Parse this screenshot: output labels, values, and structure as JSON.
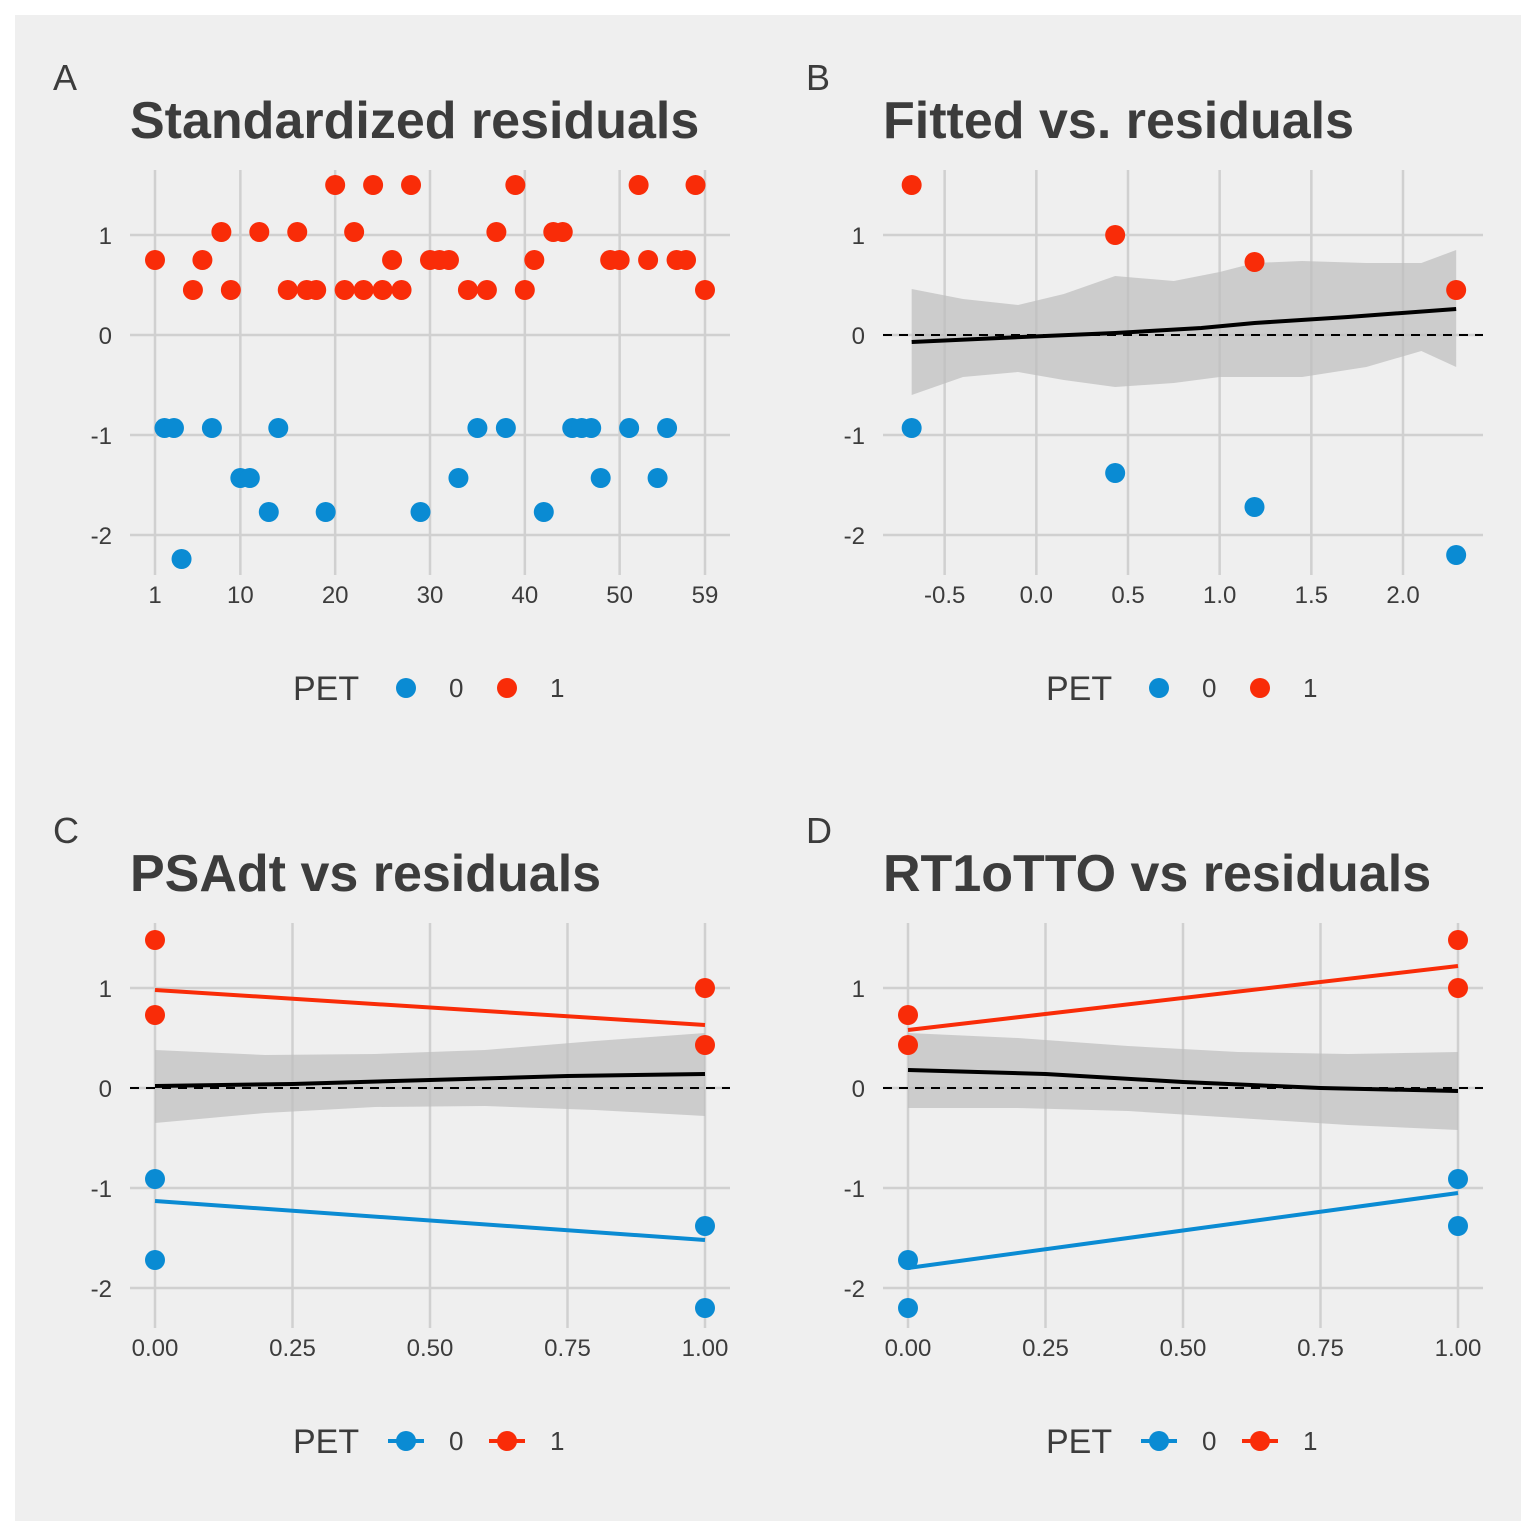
{
  "colors": {
    "pet0": "#0a8bd3",
    "pet1": "#f92c08",
    "smooth": "#000000",
    "ribbon": "#bdbdbd",
    "grid": "#d0d0d0",
    "text": "#3c3c3c",
    "background": "#efefef"
  },
  "legend": {
    "title": "PET",
    "labels": [
      "0",
      "1"
    ]
  },
  "chart_data": [
    {
      "tag": "A",
      "title": "Standardized residuals",
      "type": "scatter",
      "xlim": [
        1,
        59
      ],
      "ylim": [
        -2.25,
        1.5
      ],
      "x_ticks": [
        1,
        10,
        20,
        30,
        40,
        50,
        59
      ],
      "x_tick_labels": [
        "1",
        "10",
        "20",
        "30",
        "40",
        "50",
        "59"
      ],
      "y_ticks": [
        -2,
        -1,
        0,
        1
      ],
      "y_tick_labels": [
        "-2",
        "-1",
        "0",
        "1"
      ],
      "legend_style": "point",
      "series": [
        {
          "pet": "0",
          "points": [
            [
              2,
              -0.93
            ],
            [
              3,
              -0.93
            ],
            [
              3.8,
              -2.24
            ],
            [
              7,
              -0.93
            ],
            [
              10,
              -1.43
            ],
            [
              11,
              -1.43
            ],
            [
              13,
              -1.77
            ],
            [
              14,
              -0.93
            ],
            [
              19,
              -1.77
            ],
            [
              29,
              -1.77
            ],
            [
              33,
              -1.43
            ],
            [
              35,
              -0.93
            ],
            [
              38,
              -0.93
            ],
            [
              42,
              -1.77
            ],
            [
              45,
              -0.93
            ],
            [
              46,
              -0.93
            ],
            [
              47,
              -0.93
            ],
            [
              48,
              -1.43
            ],
            [
              51,
              -0.93
            ],
            [
              54,
              -1.43
            ],
            [
              55,
              -0.93
            ]
          ]
        },
        {
          "pet": "1",
          "points": [
            [
              1,
              0.75
            ],
            [
              5,
              0.45
            ],
            [
              6,
              0.75
            ],
            [
              8,
              1.03
            ],
            [
              9,
              0.45
            ],
            [
              12,
              1.03
            ],
            [
              15,
              0.45
            ],
            [
              16,
              1.03
            ],
            [
              17,
              0.45
            ],
            [
              18,
              0.45
            ],
            [
              20,
              1.5
            ],
            [
              21,
              0.45
            ],
            [
              22,
              1.03
            ],
            [
              23,
              0.45
            ],
            [
              24,
              1.5
            ],
            [
              25,
              0.45
            ],
            [
              26,
              0.75
            ],
            [
              27,
              0.45
            ],
            [
              28,
              1.5
            ],
            [
              30,
              0.75
            ],
            [
              31,
              0.75
            ],
            [
              32,
              0.75
            ],
            [
              34,
              0.45
            ],
            [
              36,
              0.45
            ],
            [
              37,
              1.03
            ],
            [
              39,
              1.5
            ],
            [
              40,
              0.45
            ],
            [
              41,
              0.75
            ],
            [
              43,
              1.03
            ],
            [
              44,
              1.03
            ],
            [
              49,
              0.75
            ],
            [
              50,
              0.75
            ],
            [
              52,
              1.5
            ],
            [
              53,
              0.75
            ],
            [
              56,
              0.75
            ],
            [
              57,
              0.75
            ],
            [
              58,
              1.5
            ],
            [
              59,
              0.45
            ]
          ]
        }
      ]
    },
    {
      "tag": "B",
      "title": "Fitted vs. residuals",
      "type": "scatter",
      "xlim": [
        -0.7,
        2.3
      ],
      "ylim": [
        -2.25,
        1.5
      ],
      "x_ticks": [
        -0.5,
        0,
        0.5,
        1,
        1.5,
        2
      ],
      "x_tick_labels": [
        "-0.5",
        "0.0",
        "0.5",
        "1.0",
        "1.5",
        "2.0"
      ],
      "y_ticks": [
        -2,
        -1,
        0,
        1
      ],
      "y_tick_labels": [
        "-2",
        "-1",
        "0",
        "1"
      ],
      "legend_style": "point",
      "zero_line": true,
      "series": [
        {
          "pet": "0",
          "points": [
            [
              -0.68,
              -0.93
            ],
            [
              0.43,
              -1.38
            ],
            [
              1.19,
              -1.72
            ],
            [
              2.29,
              -2.2
            ]
          ]
        },
        {
          "pet": "1",
          "points": [
            [
              -0.68,
              1.5
            ],
            [
              0.43,
              1.0
            ],
            [
              1.19,
              0.73
            ],
            [
              2.29,
              0.45
            ]
          ]
        }
      ],
      "smooth": [
        [
          -0.68,
          -0.07
        ],
        [
          -0.2,
          -0.03
        ],
        [
          0.43,
          0.02
        ],
        [
          0.9,
          0.07
        ],
        [
          1.19,
          0.12
        ],
        [
          1.7,
          0.18
        ],
        [
          2.29,
          0.26
        ]
      ],
      "ribbon_upper": [
        [
          -0.68,
          0.46
        ],
        [
          -0.4,
          0.36
        ],
        [
          -0.1,
          0.3
        ],
        [
          0.15,
          0.41
        ],
        [
          0.43,
          0.59
        ],
        [
          0.75,
          0.54
        ],
        [
          1.0,
          0.63
        ],
        [
          1.19,
          0.72
        ],
        [
          1.45,
          0.74
        ],
        [
          1.8,
          0.72
        ],
        [
          2.1,
          0.72
        ],
        [
          2.29,
          0.85
        ]
      ],
      "ribbon_lower": [
        [
          -0.68,
          -0.6
        ],
        [
          -0.4,
          -0.42
        ],
        [
          -0.1,
          -0.37
        ],
        [
          0.15,
          -0.45
        ],
        [
          0.43,
          -0.52
        ],
        [
          0.75,
          -0.48
        ],
        [
          1.0,
          -0.42
        ],
        [
          1.19,
          -0.42
        ],
        [
          1.45,
          -0.42
        ],
        [
          1.8,
          -0.32
        ],
        [
          2.1,
          -0.16
        ],
        [
          2.29,
          -0.32
        ]
      ]
    },
    {
      "tag": "C",
      "title": "PSAdt vs residuals",
      "type": "scatter",
      "xlim": [
        0,
        1
      ],
      "ylim": [
        -2.25,
        1.5
      ],
      "x_ticks": [
        0,
        0.25,
        0.5,
        0.75,
        1
      ],
      "x_tick_labels": [
        "0.00",
        "0.25",
        "0.50",
        "0.75",
        "1.00"
      ],
      "y_ticks": [
        -2,
        -1,
        0,
        1
      ],
      "y_tick_labels": [
        "-2",
        "-1",
        "0",
        "1"
      ],
      "legend_style": "line-point",
      "zero_line": true,
      "series": [
        {
          "pet": "0",
          "points": [
            [
              0,
              -0.91
            ],
            [
              0,
              -1.72
            ],
            [
              1,
              -1.38
            ],
            [
              1,
              -2.2
            ]
          ],
          "fit": [
            [
              0,
              -1.13
            ],
            [
              1,
              -1.52
            ]
          ]
        },
        {
          "pet": "1",
          "points": [
            [
              0,
              1.48
            ],
            [
              0,
              0.73
            ],
            [
              1,
              1.0
            ],
            [
              1,
              0.43
            ]
          ],
          "fit": [
            [
              0,
              0.98
            ],
            [
              1,
              0.63
            ]
          ]
        }
      ],
      "smooth": [
        [
          0,
          0.02
        ],
        [
          0.25,
          0.04
        ],
        [
          0.5,
          0.08
        ],
        [
          0.75,
          0.12
        ],
        [
          1,
          0.14
        ]
      ],
      "ribbon_upper": [
        [
          0,
          0.38
        ],
        [
          0.2,
          0.33
        ],
        [
          0.4,
          0.34
        ],
        [
          0.6,
          0.38
        ],
        [
          0.8,
          0.47
        ],
        [
          1,
          0.55
        ]
      ],
      "ribbon_lower": [
        [
          0,
          -0.35
        ],
        [
          0.2,
          -0.25
        ],
        [
          0.4,
          -0.19
        ],
        [
          0.6,
          -0.18
        ],
        [
          0.8,
          -0.22
        ],
        [
          1,
          -0.28
        ]
      ]
    },
    {
      "tag": "D",
      "title": "RT1oTTO vs residuals",
      "type": "scatter",
      "xlim": [
        0,
        1
      ],
      "ylim": [
        -2.25,
        1.5
      ],
      "x_ticks": [
        0,
        0.25,
        0.5,
        0.75,
        1
      ],
      "x_tick_labels": [
        "0.00",
        "0.25",
        "0.50",
        "0.75",
        "1.00"
      ],
      "y_ticks": [
        -2,
        -1,
        0,
        1
      ],
      "y_tick_labels": [
        "-2",
        "-1",
        "0",
        "1"
      ],
      "legend_style": "line-point",
      "zero_line": true,
      "series": [
        {
          "pet": "0",
          "points": [
            [
              0,
              -1.72
            ],
            [
              0,
              -2.2
            ],
            [
              1,
              -0.91
            ],
            [
              1,
              -1.38
            ]
          ],
          "fit": [
            [
              0,
              -1.8
            ],
            [
              1,
              -1.05
            ]
          ]
        },
        {
          "pet": "1",
          "points": [
            [
              0,
              0.73
            ],
            [
              0,
              0.43
            ],
            [
              1,
              1.48
            ],
            [
              1,
              1.0
            ]
          ],
          "fit": [
            [
              0,
              0.58
            ],
            [
              1,
              1.22
            ]
          ]
        }
      ],
      "smooth": [
        [
          0,
          0.18
        ],
        [
          0.25,
          0.14
        ],
        [
          0.5,
          0.06
        ],
        [
          0.75,
          0.0
        ],
        [
          1,
          -0.03
        ]
      ],
      "ribbon_upper": [
        [
          0,
          0.55
        ],
        [
          0.2,
          0.5
        ],
        [
          0.4,
          0.42
        ],
        [
          0.6,
          0.36
        ],
        [
          0.8,
          0.34
        ],
        [
          1,
          0.36
        ]
      ],
      "ribbon_lower": [
        [
          0,
          -0.2
        ],
        [
          0.2,
          -0.2
        ],
        [
          0.4,
          -0.23
        ],
        [
          0.6,
          -0.3
        ],
        [
          0.8,
          -0.37
        ],
        [
          1,
          -0.42
        ]
      ]
    }
  ]
}
